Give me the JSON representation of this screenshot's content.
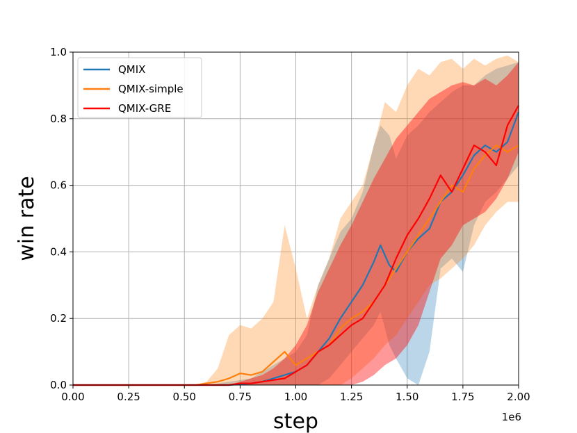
{
  "chart_data": {
    "type": "line",
    "xlabel": "step",
    "ylabel": "win rate",
    "x_offset_label": "1e6",
    "xlim": [
      0,
      2.0
    ],
    "ylim": [
      0,
      1.0
    ],
    "xticks": [
      "0.00",
      "0.25",
      "0.50",
      "0.75",
      "1.00",
      "1.25",
      "1.50",
      "1.75",
      "2.00"
    ],
    "yticks": [
      "0.0",
      "0.2",
      "0.4",
      "0.6",
      "0.8",
      "1.0"
    ],
    "grid": true,
    "legend_position": "top-left",
    "series": [
      {
        "name": "QMIX",
        "color": "#1f77b4",
        "x": [
          0,
          0.5,
          0.6,
          0.7,
          0.8,
          0.85,
          0.9,
          0.95,
          1.0,
          1.05,
          1.1,
          1.15,
          1.2,
          1.25,
          1.3,
          1.35,
          1.38,
          1.42,
          1.45,
          1.5,
          1.55,
          1.6,
          1.65,
          1.7,
          1.75,
          1.8,
          1.85,
          1.9,
          1.95,
          2.0
        ],
        "y": [
          0,
          0,
          0,
          0,
          0.005,
          0.01,
          0.02,
          0.03,
          0.04,
          0.06,
          0.1,
          0.14,
          0.2,
          0.25,
          0.3,
          0.37,
          0.42,
          0.36,
          0.34,
          0.4,
          0.44,
          0.47,
          0.55,
          0.58,
          0.63,
          0.69,
          0.72,
          0.7,
          0.73,
          0.82
        ],
        "upper": [
          0,
          0,
          0,
          0.01,
          0.02,
          0.04,
          0.06,
          0.08,
          0.1,
          0.15,
          0.3,
          0.38,
          0.46,
          0.5,
          0.58,
          0.72,
          0.78,
          0.75,
          0.68,
          0.75,
          0.78,
          0.82,
          0.85,
          0.88,
          0.9,
          0.9,
          0.93,
          0.95,
          0.96,
          0.97
        ],
        "lower": [
          0,
          0,
          0,
          0,
          0,
          0,
          0,
          0,
          0,
          0,
          0,
          0.02,
          0.06,
          0.1,
          0.14,
          0.18,
          0.22,
          0.12,
          0.08,
          0.02,
          0,
          0.1,
          0.35,
          0.38,
          0.34,
          0.48,
          0.55,
          0.58,
          0.62,
          0.66
        ]
      },
      {
        "name": "QMIX-simple",
        "color": "#ff7f0e",
        "x": [
          0,
          0.55,
          0.6,
          0.65,
          0.7,
          0.75,
          0.8,
          0.85,
          0.9,
          0.95,
          1.0,
          1.05,
          1.1,
          1.15,
          1.2,
          1.25,
          1.3,
          1.35,
          1.4,
          1.45,
          1.5,
          1.55,
          1.6,
          1.65,
          1.7,
          1.75,
          1.8,
          1.85,
          1.9,
          1.95,
          2.0
        ],
        "y": [
          0,
          0,
          0.005,
          0.01,
          0.02,
          0.035,
          0.03,
          0.04,
          0.07,
          0.1,
          0.06,
          0.08,
          0.1,
          0.12,
          0.17,
          0.2,
          0.22,
          0.25,
          0.3,
          0.35,
          0.4,
          0.45,
          0.5,
          0.55,
          0.6,
          0.58,
          0.65,
          0.69,
          0.72,
          0.7,
          0.72
        ],
        "upper": [
          0,
          0,
          0.01,
          0.05,
          0.15,
          0.18,
          0.17,
          0.2,
          0.25,
          0.48,
          0.35,
          0.2,
          0.3,
          0.38,
          0.5,
          0.55,
          0.6,
          0.72,
          0.85,
          0.82,
          0.9,
          0.95,
          0.93,
          0.97,
          0.98,
          0.95,
          0.98,
          0.96,
          0.98,
          0.99,
          0.97
        ],
        "lower": [
          0,
          0,
          0,
          0,
          0,
          0,
          0,
          0,
          0,
          0,
          0,
          0,
          0,
          0,
          0,
          0.02,
          0.05,
          0.08,
          0.12,
          0.15,
          0.2,
          0.25,
          0.3,
          0.32,
          0.35,
          0.38,
          0.42,
          0.48,
          0.52,
          0.55,
          0.55
        ]
      },
      {
        "name": "QMIX-GRE",
        "color": "#ff0000",
        "x": [
          0,
          0.7,
          0.75,
          0.8,
          0.85,
          0.9,
          0.95,
          1.0,
          1.05,
          1.1,
          1.15,
          1.2,
          1.25,
          1.3,
          1.35,
          1.4,
          1.45,
          1.5,
          1.55,
          1.6,
          1.65,
          1.7,
          1.75,
          1.8,
          1.85,
          1.9,
          1.95,
          2.0
        ],
        "y": [
          0,
          0,
          0.005,
          0.005,
          0.01,
          0.015,
          0.02,
          0.04,
          0.06,
          0.1,
          0.12,
          0.15,
          0.18,
          0.2,
          0.25,
          0.3,
          0.38,
          0.45,
          0.5,
          0.56,
          0.63,
          0.58,
          0.65,
          0.72,
          0.7,
          0.66,
          0.78,
          0.84
        ],
        "upper": [
          0,
          0,
          0.01,
          0.02,
          0.03,
          0.05,
          0.08,
          0.12,
          0.18,
          0.28,
          0.35,
          0.42,
          0.48,
          0.55,
          0.62,
          0.68,
          0.74,
          0.78,
          0.82,
          0.86,
          0.88,
          0.9,
          0.91,
          0.9,
          0.92,
          0.9,
          0.93,
          0.97
        ],
        "lower": [
          0,
          0,
          0,
          0,
          0,
          0,
          0,
          0,
          0,
          0,
          0,
          0,
          0,
          0.01,
          0.03,
          0.06,
          0.08,
          0.12,
          0.18,
          0.28,
          0.38,
          0.42,
          0.48,
          0.5,
          0.52,
          0.56,
          0.62,
          0.7
        ]
      }
    ]
  }
}
